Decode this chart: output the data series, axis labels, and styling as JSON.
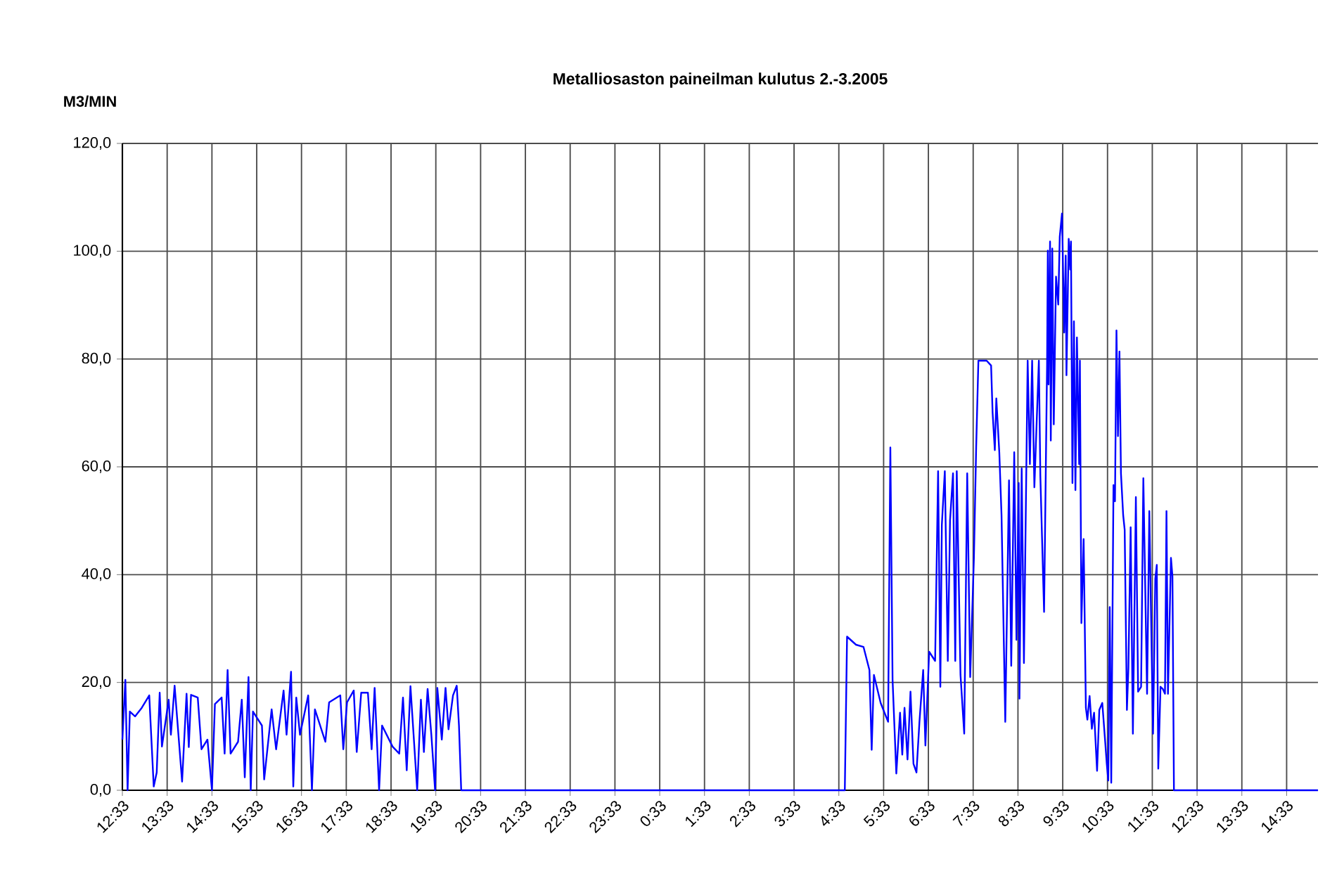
{
  "chart_data": {
    "type": "line",
    "title": "Metalliosaston paineilman kulutus 2.-3.2005",
    "ylabel": "M3/MIN",
    "x": [
      "2005-03-02T12:33",
      "2005-03-02T12:37",
      "2005-03-02T12:40",
      "2005-03-02T12:43",
      "2005-03-02T12:50",
      "2005-03-02T12:59",
      "2005-03-02T13:09",
      "2005-03-02T13:15",
      "2005-03-02T13:19",
      "2005-03-02T13:23",
      "2005-03-02T13:26",
      "2005-03-02T13:35",
      "2005-03-02T13:38",
      "2005-03-02T13:43",
      "2005-03-02T13:53",
      "2005-03-02T13:59",
      "2005-03-02T14:02",
      "2005-03-02T14:05",
      "2005-03-02T14:14",
      "2005-03-02T14:19",
      "2005-03-02T14:27",
      "2005-03-02T14:33",
      "2005-03-02T14:37",
      "2005-03-02T14:46",
      "2005-03-02T14:50",
      "2005-03-02T14:54",
      "2005-03-02T14:58",
      "2005-03-02T15:08",
      "2005-03-02T15:13",
      "2005-03-02T15:17",
      "2005-03-02T15:22",
      "2005-03-02T15:25",
      "2005-03-02T15:28",
      "2005-03-02T15:40",
      "2005-03-02T15:43",
      "2005-03-02T15:53",
      "2005-03-02T15:59",
      "2005-03-02T16:09",
      "2005-03-02T16:13",
      "2005-03-02T16:19",
      "2005-03-02T16:22",
      "2005-03-02T16:26",
      "2005-03-02T16:31",
      "2005-03-02T16:42",
      "2005-03-02T16:47",
      "2005-03-02T16:51",
      "2005-03-02T17:05",
      "2005-03-02T17:10",
      "2005-03-02T17:25",
      "2005-03-02T17:29",
      "2005-03-02T17:34",
      "2005-03-02T17:43",
      "2005-03-02T17:47",
      "2005-03-02T17:53",
      "2005-03-02T18:02",
      "2005-03-02T18:07",
      "2005-03-02T18:11",
      "2005-03-02T18:17",
      "2005-03-02T18:21",
      "2005-03-02T18:35",
      "2005-03-02T18:44",
      "2005-03-02T18:49",
      "2005-03-02T18:54",
      "2005-03-02T18:59",
      "2005-03-02T19:08",
      "2005-03-02T19:13",
      "2005-03-02T19:17",
      "2005-03-02T19:22",
      "2005-03-02T19:27",
      "2005-03-02T19:32",
      "2005-03-02T19:35",
      "2005-03-02T19:41",
      "2005-03-02T19:46",
      "2005-03-02T19:50",
      "2005-03-02T19:56",
      "2005-03-02T20:01",
      "2005-03-02T20:04",
      "2005-03-02T20:07",
      "2005-03-03T04:41",
      "2005-03-03T04:44",
      "2005-03-03T04:56",
      "2005-03-03T05:06",
      "2005-03-03T05:14",
      "2005-03-03T05:17",
      "2005-03-03T05:20",
      "2005-03-03T05:29",
      "2005-03-03T05:39",
      "2005-03-03T05:42",
      "2005-03-03T05:45",
      "2005-03-03T05:50",
      "2005-03-03T05:55",
      "2005-03-03T05:58",
      "2005-03-03T06:01",
      "2005-03-03T06:05",
      "2005-03-03T06:09",
      "2005-03-03T06:13",
      "2005-03-03T06:17",
      "2005-03-03T06:21",
      "2005-03-03T06:26",
      "2005-03-03T06:29",
      "2005-03-03T06:34",
      "2005-03-03T06:42",
      "2005-03-03T06:46",
      "2005-03-03T06:49",
      "2005-03-03T06:51",
      "2005-03-03T06:55",
      "2005-03-03T06:59",
      "2005-03-03T07:02",
      "2005-03-03T07:06",
      "2005-03-03T07:09",
      "2005-03-03T07:11",
      "2005-03-03T07:16",
      "2005-03-03T07:21",
      "2005-03-03T07:25",
      "2005-03-03T07:29",
      "2005-03-03T07:34",
      "2005-03-03T07:37",
      "2005-03-03T07:40",
      "2005-03-03T07:51",
      "2005-03-03T07:57",
      "2005-03-03T07:59",
      "2005-03-03T08:02",
      "2005-03-03T08:04",
      "2005-03-03T08:08",
      "2005-03-03T08:11",
      "2005-03-03T08:16",
      "2005-03-03T08:21",
      "2005-03-03T08:24",
      "2005-03-03T08:28",
      "2005-03-03T08:31",
      "2005-03-03T08:34",
      "2005-03-03T08:35",
      "2005-03-03T08:38",
      "2005-03-03T08:41",
      "2005-03-03T08:46",
      "2005-03-03T08:49",
      "2005-03-03T08:52",
      "2005-03-03T08:55",
      "2005-03-03T09:01",
      "2005-03-03T09:03",
      "2005-03-03T09:08",
      "2005-03-03T09:12",
      "2005-03-03T09:13",
      "2005-03-03T09:14",
      "2005-03-03T09:16",
      "2005-03-03T09:17",
      "2005-03-03T09:19",
      "2005-03-03T09:21",
      "2005-03-03T09:24",
      "2005-03-03T09:27",
      "2005-03-03T09:29",
      "2005-03-03T09:32",
      "2005-03-03T09:35",
      "2005-03-03T09:37",
      "2005-03-03T09:38",
      "2005-03-03T09:41",
      "2005-03-03T09:43",
      "2005-03-03T09:44",
      "2005-03-03T09:46",
      "2005-03-03T09:48",
      "2005-03-03T09:50",
      "2005-03-03T09:52",
      "2005-03-03T09:55",
      "2005-03-03T09:56",
      "2005-03-03T09:58",
      "2005-03-03T10:01",
      "2005-03-03T10:04",
      "2005-03-03T10:06",
      "2005-03-03T10:09",
      "2005-03-03T10:12",
      "2005-03-03T10:15",
      "2005-03-03T10:19",
      "2005-03-03T10:22",
      "2005-03-03T10:26",
      "2005-03-03T10:30",
      "2005-03-03T10:32",
      "2005-03-03T10:34",
      "2005-03-03T10:36",
      "2005-03-03T10:38",
      "2005-03-03T10:41",
      "2005-03-03T10:43",
      "2005-03-03T10:45",
      "2005-03-03T10:47",
      "2005-03-03T10:49",
      "2005-03-03T10:51",
      "2005-03-03T10:54",
      "2005-03-03T10:56",
      "2005-03-03T10:59",
      "2005-03-03T11:01",
      "2005-03-03T11:04",
      "2005-03-03T11:07",
      "2005-03-03T11:11",
      "2005-03-03T11:14",
      "2005-03-03T11:18",
      "2005-03-03T11:21",
      "2005-03-03T11:26",
      "2005-03-03T11:29",
      "2005-03-03T11:34",
      "2005-03-03T11:37",
      "2005-03-03T11:39",
      "2005-03-03T11:41",
      "2005-03-03T11:44",
      "2005-03-03T11:47",
      "2005-03-03T11:50",
      "2005-03-03T11:52",
      "2005-03-03T11:54",
      "2005-03-03T11:58",
      "2005-03-03T12:00",
      "2005-03-03T12:02",
      "2005-03-03T15:15"
    ],
    "series": [
      {
        "color": "#0000ff",
        "values": [
          9.4,
          20.5,
          0,
          14.6,
          13.7,
          15.3,
          17.6,
          0.7,
          3.3,
          18.1,
          8.1,
          16.8,
          10.3,
          19.4,
          1.6,
          17.9,
          8.0,
          17.7,
          17.2,
          7.6,
          9.4,
          0,
          16.0,
          17.2,
          6.8,
          22.3,
          6.8,
          9.0,
          16.8,
          2.4,
          21.0,
          0,
          14.6,
          12.0,
          2.0,
          15.0,
          7.6,
          18.5,
          10.3,
          22.0,
          0.7,
          17.2,
          10.3,
          17.6,
          0,
          15.0,
          9.0,
          16.3,
          17.6,
          7.6,
          16.3,
          18.5,
          7.1,
          18.1,
          18.1,
          7.6,
          19.0,
          0,
          12.0,
          8.1,
          6.8,
          17.2,
          3.7,
          19.3,
          0,
          16.8,
          7.1,
          18.8,
          10.3,
          0,
          19.0,
          9.4,
          19.0,
          11.3,
          17.6,
          19.4,
          12.0,
          0,
          0,
          28.5,
          27.0,
          26.6,
          22.3,
          7.5,
          21.4,
          16.2,
          12.7,
          63.6,
          20.5,
          3.1,
          14.4,
          6.6,
          15.3,
          5.7,
          18.3,
          4.9,
          3.3,
          12.7,
          22.3,
          8.3,
          25.7,
          24.0,
          59.2,
          19.2,
          49.2,
          59.2,
          24.0,
          50.1,
          58.8,
          24.0,
          59.2,
          21.4,
          10.5,
          58.8,
          21.0,
          43.1,
          63.6,
          79.7,
          79.7,
          78.8,
          70.1,
          63.1,
          72.7,
          62.7,
          51.0,
          12.7,
          57.5,
          23.1,
          62.7,
          27.9,
          57.0,
          17.0,
          59.7,
          23.6,
          79.7,
          60.5,
          79.7,
          56.2,
          79.7,
          58.3,
          33.1,
          78.8,
          100.1,
          75.3,
          101.8,
          64.9,
          100.5,
          67.9,
          95.3,
          90.1,
          102.7,
          107.0,
          84.9,
          99.2,
          77.0,
          102.3,
          96.6,
          101.8,
          57.0,
          87.0,
          55.7,
          84.0,
          60.5,
          79.7,
          31.0,
          46.6,
          15.3,
          13.1,
          17.5,
          11.4,
          14.4,
          3.6,
          14.9,
          16.2,
          8.8,
          4.9,
          1.8,
          34.0,
          1.4,
          56.6,
          53.6,
          85.3,
          65.7,
          81.4,
          58.8,
          51.0,
          48.3,
          14.9,
          22.7,
          48.8,
          10.5,
          54.4,
          18.3,
          19.2,
          57.9,
          17.9,
          51.8,
          10.5,
          39.2,
          41.8,
          4.0,
          19.2,
          18.8,
          17.9,
          51.8,
          17.9,
          43.1,
          39.7,
          0,
          0
        ]
      }
    ],
    "xlim": [
      "2005-03-02T12:33",
      "2005-03-03T15:15"
    ],
    "ylim": [
      0,
      120
    ],
    "xticks": [
      {
        "value": "2005-03-02T12:33",
        "label": "12:33"
      },
      {
        "value": "2005-03-02T13:33",
        "label": "13:33"
      },
      {
        "value": "2005-03-02T14:33",
        "label": "14:33"
      },
      {
        "value": "2005-03-02T15:33",
        "label": "15:33"
      },
      {
        "value": "2005-03-02T16:33",
        "label": "16:33"
      },
      {
        "value": "2005-03-02T17:33",
        "label": "17:33"
      },
      {
        "value": "2005-03-02T18:33",
        "label": "18:33"
      },
      {
        "value": "2005-03-02T19:33",
        "label": "19:33"
      },
      {
        "value": "2005-03-02T20:33",
        "label": "20:33"
      },
      {
        "value": "2005-03-02T21:33",
        "label": "21:33"
      },
      {
        "value": "2005-03-02T22:33",
        "label": "22:33"
      },
      {
        "value": "2005-03-02T23:33",
        "label": "23:33"
      },
      {
        "value": "2005-03-03T00:33",
        "label": "0:33"
      },
      {
        "value": "2005-03-03T01:33",
        "label": "1:33"
      },
      {
        "value": "2005-03-03T02:33",
        "label": "2:33"
      },
      {
        "value": "2005-03-03T03:33",
        "label": "3:33"
      },
      {
        "value": "2005-03-03T04:33",
        "label": "4:33"
      },
      {
        "value": "2005-03-03T05:33",
        "label": "5:33"
      },
      {
        "value": "2005-03-03T06:33",
        "label": "6:33"
      },
      {
        "value": "2005-03-03T07:33",
        "label": "7:33"
      },
      {
        "value": "2005-03-03T08:33",
        "label": "8:33"
      },
      {
        "value": "2005-03-03T09:33",
        "label": "9:33"
      },
      {
        "value": "2005-03-03T10:33",
        "label": "10:33"
      },
      {
        "value": "2005-03-03T11:33",
        "label": "11:33"
      },
      {
        "value": "2005-03-03T12:33",
        "label": "12:33"
      },
      {
        "value": "2005-03-03T13:33",
        "label": "13:33"
      },
      {
        "value": "2005-03-03T14:33",
        "label": "14:33"
      }
    ],
    "yticks": [
      {
        "value": 0,
        "label": "0,0"
      },
      {
        "value": 20,
        "label": "20,0"
      },
      {
        "value": 40,
        "label": "40,0"
      },
      {
        "value": 60,
        "label": "60,0"
      },
      {
        "value": 80,
        "label": "80,0"
      },
      {
        "value": 100,
        "label": "100,0"
      },
      {
        "value": 120,
        "label": "120,0"
      }
    ],
    "grid": true,
    "line_style": "solid"
  }
}
